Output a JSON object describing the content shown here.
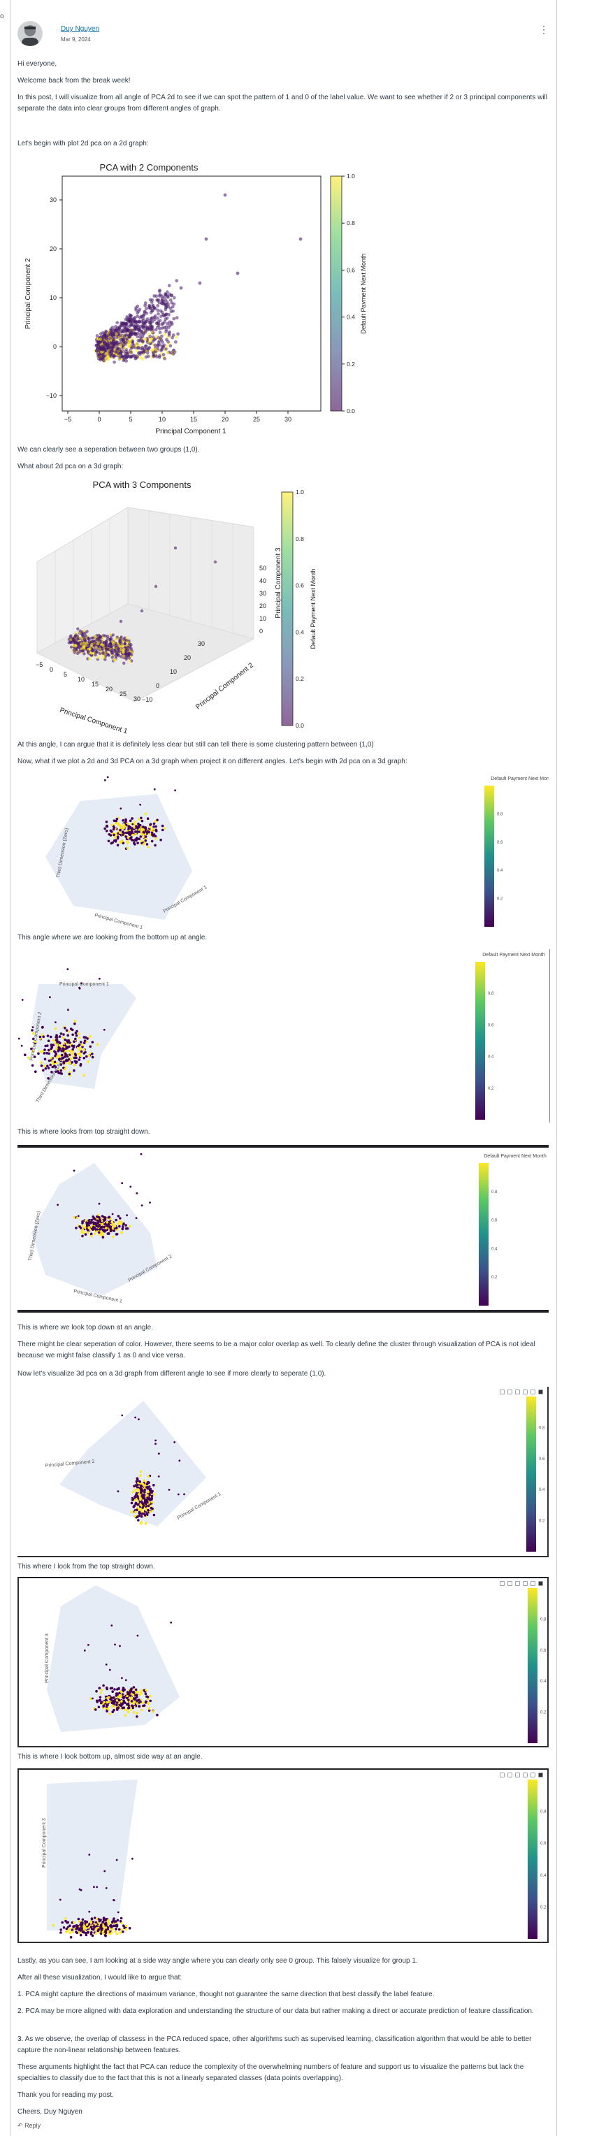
{
  "post": {
    "author": "Duy Nguyen",
    "date": "Mar 9, 2024",
    "menu_glyph": "⋮",
    "edge_glyph": "o"
  },
  "paragraphs": {
    "greeting": "Hi everyone,",
    "welcome": "Welcome back from the break week!",
    "intro": "In this post, I will visualize  from all angle of PCA 2d to see if we can spot the pattern of 1 and 0 of the label value. We want to see whether if 2 or 3 principal components will separate the data into clear groups from different angles of graph.",
    "begin": "Let's begin with plot 2d pca on a 2d graph:",
    "separation": "We can clearly see a seperation between two groups (1,0).",
    "what_about": "What about 2d pca on a 3d graph:",
    "at_this_angle": "At this angle, I can argue that it is definitely less clear but still can tell there is some clustering pattern between (1,0)",
    "now_what": "Now, what if we plot a 2d and 3d  PCA on a 3d graph when project it on different angles. Let's begin with 2d pca on a 3d graph:",
    "bottom_up": "This angle where we are looking from the bottom up at angle.",
    "top_down": "This is where looks from top straight down.",
    "look_top_angle": "This is where we look top down at an angle.",
    "might_be": "There might be clear seperation of color. However, there seems to be a major color overlap as well. To clearly define the cluster through visualization of PCA is not ideal because we might false classify 1 as 0 and vice versa.",
    "now_3d": "Now let's visualize 3d pca on a 3d graph from different angle to see if more clearly to seperate (1,0).",
    "top_straight": "This where I look from the top straight down.",
    "bottom_side": "This is where I look bottom up, almost side way at an angle.",
    "lastly": "Lastly, as you can see, I am looking at a side way angle where you can clearly only see 0 group. This falsely visualize for group 1.",
    "after_all": "After all these visualization, I would like to argue that:",
    "point1": "1. PCA might capture the directions of maximum variance, thought not guarantee the same direction that best classify the label feature.",
    "point2": "2. PCA may be more aligned with data exploration and understanding the structure of our data but rather making a direct or accurate prediction of feature classification.",
    "point3": "3. As we observe, the overlap of classess in the PCA reduced space, other algorithms such as supervised learning, classification algorithm that would be able to better capture the non-linear relationship between features.",
    "arguments": "These arguments highlight the fact that PCA can reduce the complexity of the overwhelming numbers of feature and support us to visualize the patterns but lack the specialties to classify due to the fact that this is not a linearly separated classes (data points overlapping).",
    "thanks": "Thank you for reading my post.",
    "cheers": "Cheers,",
    "signature": "Duy Nguyen"
  },
  "reply": {
    "label": "Reply",
    "icon": "↶"
  },
  "fig_2d": {
    "title": "PCA with 2 Components",
    "xlabel": "Principal Component 1",
    "ylabel": "Principal Component 2",
    "colorbar_label": "Default Payment Next Month",
    "xticks": [
      "−5",
      "0",
      "5",
      "10",
      "15",
      "20",
      "25",
      "30"
    ],
    "yticks": [
      "−10",
      "0",
      "10",
      "20",
      "30"
    ],
    "cticks": [
      "0.0",
      "0.2",
      "0.4",
      "0.6",
      "0.8",
      "1.0"
    ]
  },
  "fig_3d": {
    "title": "PCA with 3 Components",
    "xlabel": "Principal Component 1",
    "ylabel": "Principal Component 2",
    "zlabel": "Principal Component 3",
    "colorbar_label": "Default Payment Next Month",
    "xticks": [
      "−5",
      "0",
      "5",
      "10",
      "15",
      "20",
      "25",
      "30"
    ],
    "yticks": [
      "−10",
      "0",
      "10",
      "20",
      "30"
    ],
    "zticks": [
      "0",
      "10",
      "20",
      "30",
      "40",
      "50"
    ],
    "cticks": [
      "0.0",
      "0.2",
      "0.4",
      "0.6",
      "0.8",
      "1.0"
    ]
  },
  "plotly": {
    "colorbar_title": "Default Payment Next Month",
    "cticks": [
      "0.2",
      "0.4",
      "0.6",
      "0.8"
    ],
    "axis_pc1": "Principal Component 1",
    "axis_pc2": "Principal Component 2",
    "axis_pc3": "Principal Component 3",
    "axis_third": "Third Dimension (Zero)"
  },
  "colors": {
    "text": "#2d3b45",
    "link": "#0770a3",
    "viridis_dark": "#440154",
    "viridis_yellow": "#fde725",
    "scene_bg": "#e5ecf6"
  }
}
